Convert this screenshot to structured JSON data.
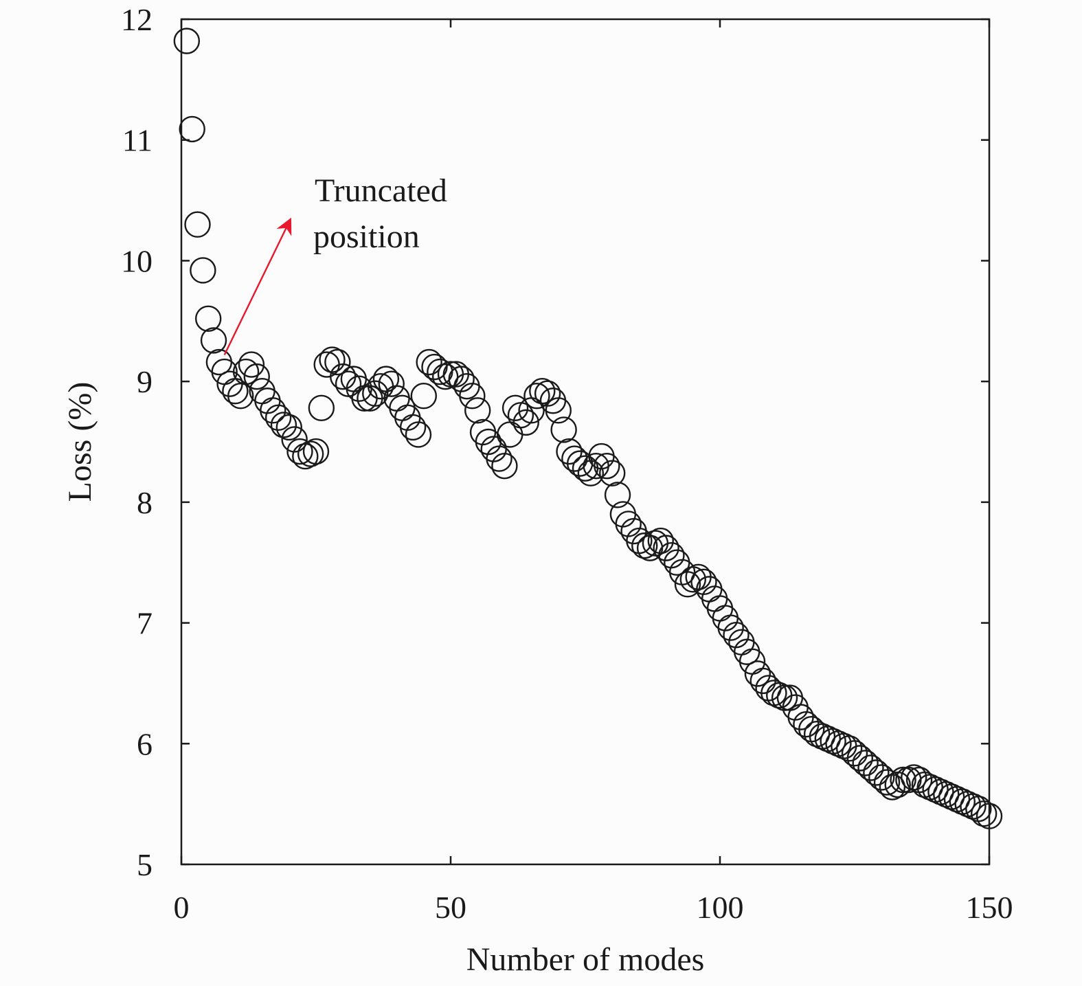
{
  "chart_data": {
    "type": "scatter",
    "title": "",
    "xlabel": "Number of modes",
    "ylabel": "Loss (%)",
    "xlim": [
      0,
      150
    ],
    "ylim": [
      5,
      12
    ],
    "x_ticks": [
      "0",
      "50",
      "100",
      "150"
    ],
    "y_ticks": [
      "5",
      "6",
      "7",
      "8",
      "9",
      "10",
      "11",
      "12"
    ],
    "grid": false,
    "marker": "open-circle",
    "annotation": {
      "lines": [
        "Truncated",
        "position"
      ],
      "arrow_from": [
        8,
        9.22
      ],
      "arrow_to": [
        20,
        10.32
      ],
      "arrow_color": "#e8192c"
    },
    "x": [
      1,
      2,
      3,
      4,
      5,
      6,
      7,
      8,
      9,
      10,
      11,
      12,
      13,
      14,
      15,
      16,
      17,
      18,
      19,
      20,
      21,
      22,
      23,
      24,
      25,
      26,
      27,
      28,
      29,
      30,
      31,
      32,
      33,
      34,
      35,
      36,
      37,
      38,
      39,
      40,
      41,
      42,
      43,
      44,
      45,
      46,
      47,
      48,
      49,
      50,
      51,
      52,
      53,
      54,
      55,
      56,
      57,
      58,
      59,
      60,
      61,
      62,
      63,
      64,
      65,
      66,
      67,
      68,
      69,
      70,
      71,
      72,
      73,
      74,
      75,
      76,
      77,
      78,
      79,
      80,
      81,
      82,
      83,
      84,
      85,
      86,
      87,
      88,
      89,
      90,
      91,
      92,
      93,
      94,
      95,
      96,
      97,
      98,
      99,
      100,
      101,
      102,
      103,
      104,
      105,
      106,
      107,
      108,
      109,
      110,
      111,
      112,
      113,
      114,
      115,
      116,
      117,
      118,
      119,
      120,
      121,
      122,
      123,
      124,
      125,
      126,
      127,
      128,
      129,
      130,
      131,
      132,
      133,
      134,
      135,
      136,
      137,
      138,
      139,
      140,
      141,
      142,
      143,
      144,
      145,
      146,
      147,
      148,
      149,
      150
    ],
    "y": [
      11.82,
      11.09,
      10.3,
      9.92,
      9.52,
      9.34,
      9.16,
      9.08,
      8.98,
      8.92,
      8.88,
      9.08,
      9.14,
      9.04,
      8.92,
      8.84,
      8.76,
      8.7,
      8.64,
      8.62,
      8.52,
      8.42,
      8.38,
      8.4,
      8.42,
      8.78,
      9.14,
      9.18,
      9.16,
      9.04,
      8.98,
      9.02,
      8.94,
      8.86,
      8.86,
      8.9,
      8.96,
      9.02,
      8.98,
      8.86,
      8.78,
      8.7,
      8.62,
      8.56,
      8.88,
      9.16,
      9.12,
      9.08,
      9.04,
      9.06,
      9.06,
      9.02,
      8.96,
      8.88,
      8.76,
      8.58,
      8.5,
      8.44,
      8.36,
      8.3,
      8.56,
      8.78,
      8.72,
      8.66,
      8.76,
      8.88,
      8.92,
      8.9,
      8.84,
      8.76,
      8.6,
      8.42,
      8.36,
      8.32,
      8.28,
      8.24,
      8.3,
      8.38,
      8.3,
      8.24,
      8.06,
      7.9,
      7.82,
      7.76,
      7.68,
      7.64,
      7.62,
      7.66,
      7.68,
      7.62,
      7.56,
      7.5,
      7.42,
      7.32,
      7.36,
      7.38,
      7.34,
      7.28,
      7.2,
      7.12,
      7.04,
      6.96,
      6.9,
      6.84,
      6.76,
      6.68,
      6.58,
      6.52,
      6.46,
      6.42,
      6.4,
      6.38,
      6.38,
      6.3,
      6.22,
      6.16,
      6.12,
      6.08,
      6.06,
      6.04,
      6.02,
      6.0,
      5.98,
      5.96,
      5.92,
      5.88,
      5.84,
      5.8,
      5.76,
      5.72,
      5.68,
      5.64,
      5.66,
      5.7,
      5.7,
      5.72,
      5.7,
      5.66,
      5.64,
      5.62,
      5.6,
      5.58,
      5.56,
      5.54,
      5.52,
      5.5,
      5.48,
      5.46,
      5.42,
      5.4
    ]
  }
}
